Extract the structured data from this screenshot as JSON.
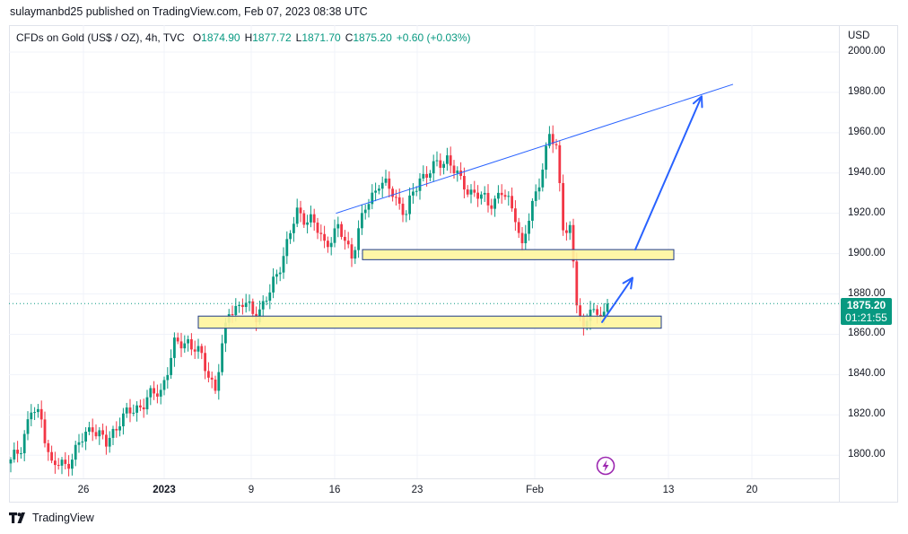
{
  "header": {
    "published_text": "sulaymanbd25 published on TradingView.com, Feb 07, 2023 08:38 UTC"
  },
  "legend": {
    "symbol": "CFDs on Gold (US$ / OZ), 4h, TVC",
    "open_label": "O",
    "open_value": "1874.90",
    "high_label": "H",
    "high_value": "1877.72",
    "low_label": "L",
    "low_value": "1871.70",
    "close_label": "C",
    "close_value": "1875.20",
    "change": "+0.60 (+0.03%)"
  },
  "price_axis": {
    "currency": "USD",
    "ticks": [
      "2000.00",
      "1980.00",
      "1960.00",
      "1940.00",
      "1920.00",
      "1900.00",
      "1880.00",
      "1860.00",
      "1840.00",
      "1820.00",
      "1800.00"
    ]
  },
  "time_axis": {
    "ticks": [
      {
        "label": "26",
        "bold": false
      },
      {
        "label": "2023",
        "bold": true
      },
      {
        "label": "9",
        "bold": false
      },
      {
        "label": "16",
        "bold": false
      },
      {
        "label": "23",
        "bold": false
      },
      {
        "label": "Feb",
        "bold": false
      },
      {
        "label": "13",
        "bold": false
      },
      {
        "label": "20",
        "bold": false
      }
    ]
  },
  "last_price": {
    "price": "1875.20",
    "countdown": "01:21:55"
  },
  "footer": {
    "brand": "TradingView"
  },
  "colors": {
    "up": "#089981",
    "down": "#f23645",
    "trendline": "#2962ff",
    "zone_fill": "#fff59d",
    "zone_border": "#1e3a8a",
    "grid": "#f0f3fa",
    "event_icon": "#9c27b0"
  },
  "chart_data": {
    "type": "candlestick",
    "symbol": "CFDs on Gold (US$ / OZ)",
    "interval": "4h",
    "ylim": [
      1790,
      2005
    ],
    "last_price": 1875.2,
    "path_points": [
      [
        0,
        1796
      ],
      [
        3,
        1805
      ],
      [
        6,
        1822
      ],
      [
        9,
        1818
      ],
      [
        12,
        1795
      ],
      [
        16,
        1795
      ],
      [
        20,
        1805
      ],
      [
        24,
        1815
      ],
      [
        28,
        1805
      ],
      [
        32,
        1818
      ],
      [
        36,
        1822
      ],
      [
        40,
        1828
      ],
      [
        44,
        1832
      ],
      [
        48,
        1854
      ],
      [
        52,
        1857
      ],
      [
        56,
        1848
      ],
      [
        60,
        1833
      ],
      [
        64,
        1872
      ],
      [
        68,
        1875
      ],
      [
        72,
        1870
      ],
      [
        76,
        1880
      ],
      [
        80,
        1900
      ],
      [
        84,
        1920
      ],
      [
        88,
        1917
      ],
      [
        92,
        1905
      ],
      [
        96,
        1912
      ],
      [
        100,
        1900
      ],
      [
        104,
        1922
      ],
      [
        108,
        1936
      ],
      [
        112,
        1930
      ],
      [
        116,
        1920
      ],
      [
        120,
        1938
      ],
      [
        124,
        1942
      ],
      [
        128,
        1948
      ],
      [
        132,
        1935
      ],
      [
        136,
        1930
      ],
      [
        140,
        1925
      ],
      [
        144,
        1930
      ],
      [
        148,
        1920
      ],
      [
        150,
        1903
      ],
      [
        154,
        1930
      ],
      [
        158,
        1958
      ],
      [
        160,
        1952
      ],
      [
        162,
        1915
      ],
      [
        164,
        1912
      ],
      [
        166,
        1875
      ],
      [
        168,
        1862
      ],
      [
        170,
        1876
      ],
      [
        172,
        1866
      ],
      [
        174,
        1872
      ],
      [
        175,
        1875.2
      ]
    ],
    "drawings": [
      {
        "type": "trendline",
        "from": [
          1,
          1920
        ],
        "to": [
          13,
          1984
        ]
      },
      {
        "type": "zone",
        "from_date": "Jan 18",
        "to_date": "Feb 12",
        "low": 1897,
        "high": 1902
      },
      {
        "type": "zone",
        "from_date": "Jan 3",
        "to_date": "Feb 11",
        "low": 1863,
        "high": 1869
      },
      {
        "type": "arrow",
        "from": [
          1869,
          1866
        ],
        "to": [
          1900,
          1888
        ]
      },
      {
        "type": "arrow",
        "from": [
          1903,
          1902
        ],
        "to": [
          1982,
          1978
        ]
      }
    ]
  }
}
